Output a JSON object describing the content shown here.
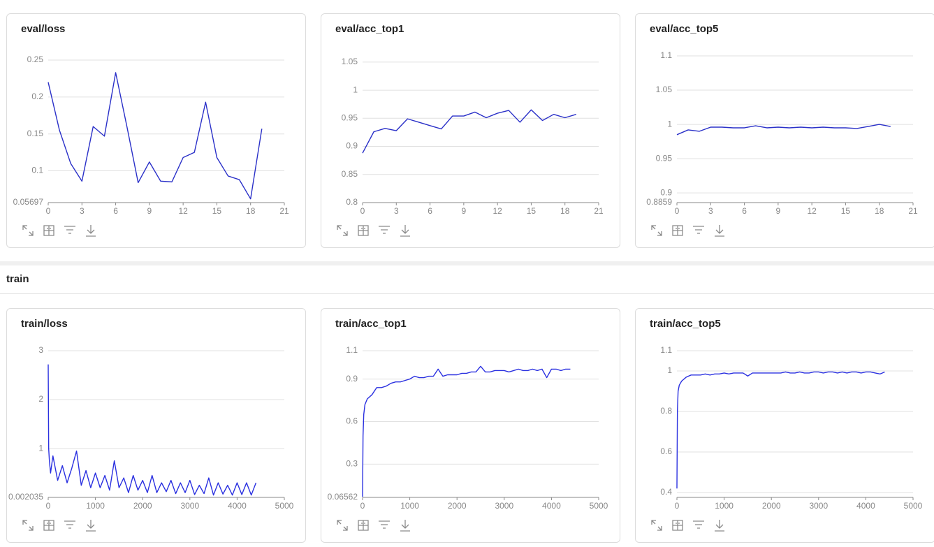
{
  "section_title": "train",
  "chart_data": [
    {
      "type": "line",
      "title": "eval/loss",
      "color": "#2a30c8",
      "x": [
        0,
        1,
        2,
        3,
        4,
        5,
        6,
        7,
        8,
        9,
        10,
        11,
        12,
        13,
        14,
        15,
        16,
        17,
        18,
        19
      ],
      "values": [
        0.22,
        0.155,
        0.11,
        0.086,
        0.16,
        0.147,
        0.233,
        0.16,
        0.084,
        0.112,
        0.086,
        0.085,
        0.118,
        0.125,
        0.193,
        0.118,
        0.093,
        0.088,
        0.062,
        0.157
      ],
      "xlim": [
        0,
        21
      ],
      "xticks": [
        0,
        3,
        6,
        9,
        12,
        15,
        18,
        21
      ],
      "ylim": [
        0.05697,
        0.2557
      ],
      "yticks": [
        0.05697,
        0.1,
        0.15,
        0.2,
        0.25
      ],
      "grid": true
    },
    {
      "type": "line",
      "title": "eval/acc_top1",
      "color": "#2a30c8",
      "x": [
        0,
        1,
        2,
        3,
        4,
        5,
        6,
        7,
        8,
        9,
        10,
        11,
        12,
        13,
        14,
        15,
        16,
        17,
        18,
        19
      ],
      "values": [
        0.888,
        0.926,
        0.932,
        0.928,
        0.949,
        0.943,
        0.937,
        0.931,
        0.954,
        0.954,
        0.961,
        0.951,
        0.959,
        0.964,
        0.943,
        0.965,
        0.946,
        0.957,
        0.951,
        0.957
      ],
      "xlim": [
        0,
        21
      ],
      "xticks": [
        0,
        3,
        6,
        9,
        12,
        15,
        18,
        21
      ],
      "ylim": [
        0.8,
        1.061
      ],
      "yticks": [
        0.8,
        0.85,
        0.9,
        0.95,
        1,
        1.05
      ],
      "grid": true
    },
    {
      "type": "line",
      "title": "eval/acc_top5",
      "color": "#2a30c8",
      "x": [
        0,
        1,
        2,
        3,
        4,
        5,
        6,
        7,
        8,
        9,
        10,
        11,
        12,
        13,
        14,
        15,
        16,
        17,
        18,
        19
      ],
      "values": [
        0.985,
        0.992,
        0.99,
        0.996,
        0.996,
        0.995,
        0.995,
        0.998,
        0.995,
        0.996,
        0.995,
        0.996,
        0.995,
        0.996,
        0.995,
        0.995,
        0.994,
        0.997,
        1.0,
        0.997
      ],
      "xlim": [
        0,
        21
      ],
      "xticks": [
        0,
        3,
        6,
        9,
        12,
        15,
        18,
        21
      ],
      "ylim": [
        0.8859,
        1.1
      ],
      "yticks": [
        0.8859,
        0.9,
        0.95,
        1,
        1.05,
        1.1
      ],
      "grid": true
    },
    {
      "type": "line",
      "title": "train/loss",
      "color": "#2a30e0",
      "x": [
        0,
        10,
        25,
        50,
        100,
        200,
        300,
        400,
        500,
        600,
        700,
        800,
        900,
        1000,
        1100,
        1200,
        1300,
        1400,
        1500,
        1600,
        1700,
        1800,
        1900,
        2000,
        2100,
        2200,
        2300,
        2400,
        2500,
        2600,
        2700,
        2800,
        2900,
        3000,
        3100,
        3200,
        3300,
        3400,
        3500,
        3600,
        3700,
        3800,
        3900,
        4000,
        4100,
        4200,
        4300,
        4400
      ],
      "values": [
        2.72,
        1.0,
        0.75,
        0.5,
        0.85,
        0.35,
        0.65,
        0.3,
        0.6,
        0.95,
        0.25,
        0.55,
        0.2,
        0.5,
        0.2,
        0.45,
        0.15,
        0.75,
        0.2,
        0.4,
        0.1,
        0.45,
        0.15,
        0.35,
        0.1,
        0.45,
        0.1,
        0.3,
        0.12,
        0.35,
        0.08,
        0.3,
        0.1,
        0.35,
        0.06,
        0.25,
        0.08,
        0.4,
        0.05,
        0.3,
        0.07,
        0.25,
        0.05,
        0.3,
        0.06,
        0.3,
        0.05,
        0.3
      ],
      "xlim": [
        0,
        5000
      ],
      "xticks": [
        0,
        1000,
        2000,
        3000,
        4000,
        5000
      ],
      "ylim": [
        0.002035,
        3
      ],
      "yticks": [
        0.002035,
        1,
        2,
        3
      ],
      "grid": true
    },
    {
      "type": "line",
      "title": "train/acc_top1",
      "color": "#2a30e0",
      "x": [
        0,
        10,
        25,
        50,
        100,
        200,
        300,
        400,
        500,
        600,
        700,
        800,
        900,
        1000,
        1100,
        1200,
        1300,
        1400,
        1500,
        1600,
        1700,
        1800,
        1900,
        2000,
        2100,
        2200,
        2300,
        2400,
        2500,
        2600,
        2700,
        2800,
        2900,
        3000,
        3100,
        3200,
        3300,
        3400,
        3500,
        3600,
        3700,
        3800,
        3900,
        4000,
        4100,
        4200,
        4300,
        4400
      ],
      "values": [
        0.07,
        0.5,
        0.65,
        0.72,
        0.76,
        0.79,
        0.84,
        0.84,
        0.85,
        0.87,
        0.88,
        0.88,
        0.89,
        0.9,
        0.92,
        0.91,
        0.91,
        0.92,
        0.92,
        0.97,
        0.92,
        0.93,
        0.93,
        0.93,
        0.94,
        0.94,
        0.95,
        0.95,
        0.99,
        0.95,
        0.95,
        0.96,
        0.96,
        0.96,
        0.95,
        0.96,
        0.97,
        0.96,
        0.96,
        0.97,
        0.96,
        0.97,
        0.91,
        0.97,
        0.97,
        0.96,
        0.97,
        0.97
      ],
      "xlim": [
        0,
        5000
      ],
      "xticks": [
        0,
        1000,
        2000,
        3000,
        4000,
        5000
      ],
      "ylim": [
        0.06562,
        1.1
      ],
      "yticks": [
        0.06562,
        0.3,
        0.6,
        0.9,
        1.1
      ],
      "grid": true
    },
    {
      "type": "line",
      "title": "train/acc_top5",
      "color": "#2a30e0",
      "x": [
        0,
        10,
        25,
        50,
        100,
        200,
        300,
        400,
        500,
        600,
        700,
        800,
        900,
        1000,
        1100,
        1200,
        1300,
        1400,
        1500,
        1600,
        1700,
        1800,
        1900,
        2000,
        2100,
        2200,
        2300,
        2400,
        2500,
        2600,
        2700,
        2800,
        2900,
        3000,
        3100,
        3200,
        3300,
        3400,
        3500,
        3600,
        3700,
        3800,
        3900,
        4000,
        4100,
        4200,
        4300,
        4400
      ],
      "values": [
        0.42,
        0.8,
        0.9,
        0.93,
        0.95,
        0.97,
        0.98,
        0.98,
        0.98,
        0.985,
        0.98,
        0.985,
        0.985,
        0.99,
        0.985,
        0.99,
        0.99,
        0.99,
        0.975,
        0.99,
        0.99,
        0.99,
        0.99,
        0.99,
        0.99,
        0.99,
        0.995,
        0.99,
        0.99,
        0.995,
        0.99,
        0.99,
        0.995,
        0.995,
        0.99,
        0.995,
        0.995,
        0.99,
        0.995,
        0.99,
        0.995,
        0.995,
        0.99,
        0.995,
        0.995,
        0.99,
        0.985,
        0.995
      ],
      "xlim": [
        0,
        5000
      ],
      "xticks": [
        0,
        1000,
        2000,
        3000,
        4000,
        5000
      ],
      "ylim": [
        0.376,
        1.1
      ],
      "yticks": [
        0.4,
        0.6,
        0.8,
        1,
        1.1
      ],
      "grid": true
    }
  ]
}
